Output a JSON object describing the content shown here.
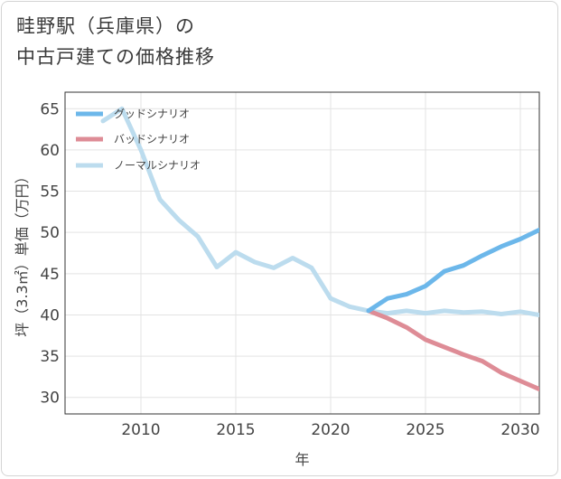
{
  "title": {
    "line1": "畦野駅（兵庫県）の",
    "line2": "中古戸建ての価格推移"
  },
  "chart_data": {
    "type": "line",
    "title": "畦野駅（兵庫県）の中古戸建ての価格推移",
    "xlabel": "年",
    "ylabel": "坪（3.3㎡）単価（万円）",
    "xlim": [
      2006,
      2031
    ],
    "ylim": [
      28,
      67
    ],
    "xticks": [
      2010,
      2015,
      2020,
      2025,
      2030
    ],
    "yticks": [
      30,
      35,
      40,
      45,
      50,
      55,
      60,
      65
    ],
    "grid": true,
    "legend_position": "top-left",
    "series": [
      {
        "name": "グッドシナリオ",
        "color": "#6cb7ea",
        "points": [
          [
            2022,
            40.5
          ],
          [
            2023,
            42.0
          ],
          [
            2024,
            42.5
          ],
          [
            2025,
            43.5
          ],
          [
            2026,
            45.3
          ],
          [
            2027,
            46.0
          ],
          [
            2028,
            47.2
          ],
          [
            2029,
            48.3
          ],
          [
            2030,
            49.2
          ],
          [
            2031,
            50.3
          ]
        ]
      },
      {
        "name": "バッドシナリオ",
        "color": "#de8c96",
        "points": [
          [
            2022,
            40.5
          ],
          [
            2023,
            39.6
          ],
          [
            2024,
            38.5
          ],
          [
            2025,
            37.0
          ],
          [
            2026,
            36.1
          ],
          [
            2027,
            35.2
          ],
          [
            2028,
            34.4
          ],
          [
            2029,
            33.0
          ],
          [
            2030,
            32.0
          ],
          [
            2031,
            31.0
          ]
        ]
      },
      {
        "name": "ノーマルシナリオ",
        "color": "#bcdcee",
        "points": [
          [
            2008,
            63.5
          ],
          [
            2009,
            65.0
          ],
          [
            2010,
            60.0
          ],
          [
            2011,
            54.0
          ],
          [
            2012,
            51.5
          ],
          [
            2013,
            49.5
          ],
          [
            2014,
            45.8
          ],
          [
            2015,
            47.6
          ],
          [
            2016,
            46.4
          ],
          [
            2017,
            45.7
          ],
          [
            2018,
            46.9
          ],
          [
            2019,
            45.7
          ],
          [
            2020,
            42.0
          ],
          [
            2021,
            41.0
          ],
          [
            2022,
            40.5
          ],
          [
            2023,
            40.2
          ],
          [
            2024,
            40.5
          ],
          [
            2025,
            40.2
          ],
          [
            2026,
            40.5
          ],
          [
            2027,
            40.3
          ],
          [
            2028,
            40.4
          ],
          [
            2029,
            40.1
          ],
          [
            2030,
            40.4
          ],
          [
            2031,
            40.0
          ]
        ]
      }
    ]
  }
}
